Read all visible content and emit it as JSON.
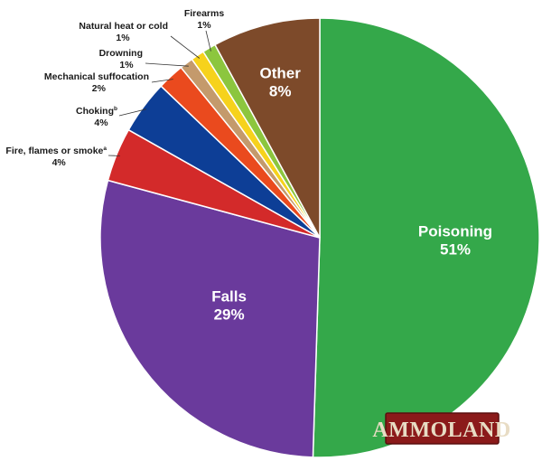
{
  "chart_data": {
    "type": "pie",
    "start_angle_deg": 0,
    "direction": "clockwise",
    "slices": [
      {
        "label": "Poisoning",
        "value": 51,
        "value_label": "51%",
        "color": "#34a84a",
        "label_pos": "inside"
      },
      {
        "label": "Falls",
        "value": 29,
        "value_label": "29%",
        "color": "#6a3a9c",
        "label_pos": "inside"
      },
      {
        "label": "Fire, flames or smoke",
        "sup": "a",
        "value": 4,
        "value_label": "4%",
        "color": "#d32a2a",
        "label_pos": "outside"
      },
      {
        "label": "Choking",
        "sup": "b",
        "value": 4,
        "value_label": "4%",
        "color": "#0d3e96",
        "label_pos": "outside"
      },
      {
        "label": "Mechanical suffocation",
        "value": 2,
        "value_label": "2%",
        "color": "#ea4a1e",
        "label_pos": "outside"
      },
      {
        "label": "Drowning",
        "value": 1,
        "value_label": "1%",
        "color": "#c49a6c",
        "label_pos": "outside"
      },
      {
        "label": "Natural heat or cold",
        "value": 1,
        "value_label": "1%",
        "color": "#f6d21c",
        "label_pos": "outside"
      },
      {
        "label": "Firearms",
        "value": 1,
        "value_label": "1%",
        "color": "#8cc63e",
        "label_pos": "outside"
      },
      {
        "label": "Other",
        "value": 8,
        "value_label": "8%",
        "color": "#7d4a2a",
        "label_pos": "inside"
      }
    ]
  },
  "watermark": {
    "text": "AMMOLAND",
    "bg_color": "#8b1a1a"
  }
}
